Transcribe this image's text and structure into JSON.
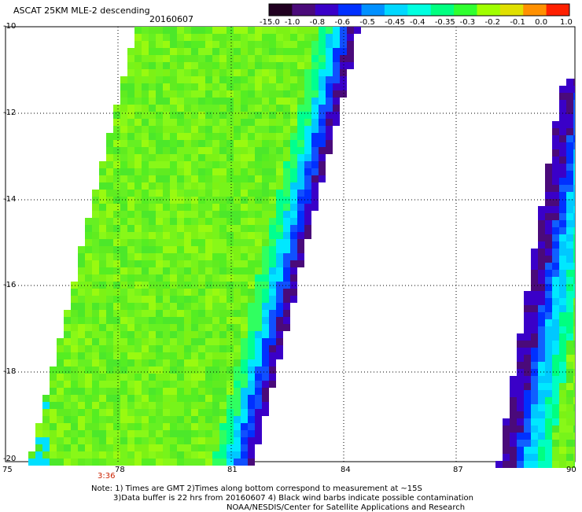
{
  "title": "ASCAT 25KM MLE-2 descending",
  "date": "20160607",
  "colorbar": {
    "labels": [
      "-15.0",
      "-1.0",
      "-0.8",
      "-0.6",
      "-0.5",
      "-0.45",
      "-0.4",
      "-0.35",
      "-0.3",
      "-0.2",
      "-0.1",
      "0.0",
      "1.0"
    ],
    "colors": [
      "#200020",
      "#4a0a7a",
      "#3a00c8",
      "#0030ff",
      "#0090ff",
      "#00d8ff",
      "#00ffe0",
      "#00ff80",
      "#30ff30",
      "#a0ff00",
      "#e0e000",
      "#ff9000",
      "#ff2000"
    ]
  },
  "axes": {
    "x_ticks": [
      "75",
      "78",
      "81",
      "84",
      "87",
      "90"
    ],
    "y_ticks": [
      "-10",
      "-12",
      "-14",
      "-16",
      "-18",
      "-20"
    ]
  },
  "time_label": "3:36",
  "colors": {
    "time_label": "#cc2200"
  },
  "notes": [
    "Note: 1) Times are GMT 2)Times along bottom correspond to measurement at ~15S",
    "3)Data buffer is 22 hrs from 20160607 4) Black wind barbs indicate possible contamination",
    "NOAA/NESDIS/Center for Satellite Applications and Research"
  ]
}
